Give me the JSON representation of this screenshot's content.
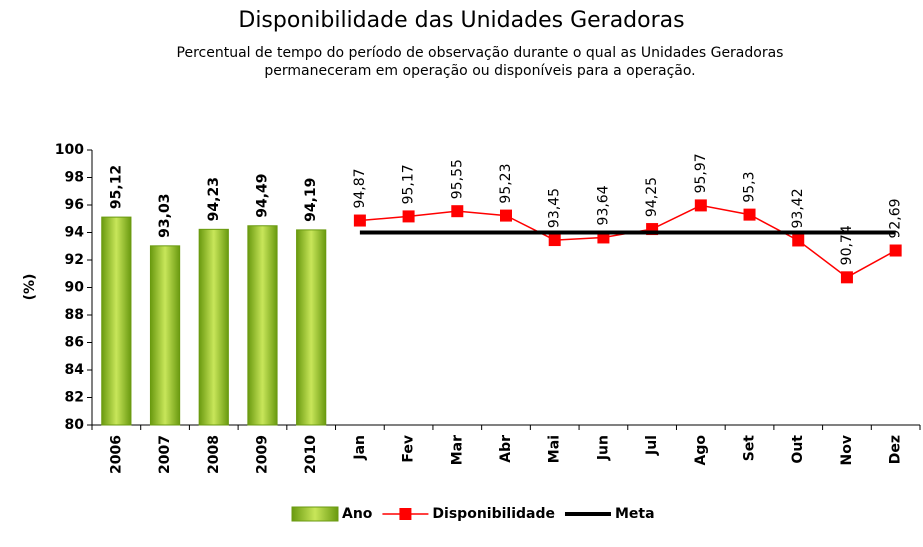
{
  "chart_data": {
    "type": "bar_line",
    "title": "Disponibilidade das Unidades Geradoras",
    "subtitle": "Percentual de tempo do período de observação durante o qual as Unidades Geradoras permaneceram em operação ou disponíveis para a operação.",
    "y_label": "(%)",
    "categories": [
      "2006",
      "2007",
      "2008",
      "2009",
      "2010",
      "Jan",
      "Fev",
      "Mar",
      "Abr",
      "Mai",
      "Jun",
      "Jul",
      "Ago",
      "Set",
      "Out",
      "Nov",
      "Dez"
    ],
    "series": [
      {
        "name": "Ano",
        "kind": "bar",
        "color": "#6a9a10",
        "values": [
          95.12,
          93.03,
          94.23,
          94.49,
          94.19,
          null,
          null,
          null,
          null,
          null,
          null,
          null,
          null,
          null,
          null,
          null,
          null
        ],
        "value_labels": [
          "95,12",
          "93,03",
          "94,23",
          "94,49",
          "94,19",
          null,
          null,
          null,
          null,
          null,
          null,
          null,
          null,
          null,
          null,
          null,
          null
        ]
      },
      {
        "name": "Disponibilidade",
        "kind": "line",
        "color": "#ff0000",
        "values": [
          null,
          null,
          null,
          null,
          null,
          94.87,
          95.17,
          95.55,
          95.23,
          93.45,
          93.64,
          94.25,
          95.97,
          95.3,
          93.42,
          90.74,
          92.69
        ],
        "value_labels": [
          null,
          null,
          null,
          null,
          null,
          "94,87",
          "95,17",
          "95,55",
          "95,23",
          "93,45",
          "93,64",
          "94,25",
          "95,97",
          "95,3",
          "93,42",
          "90,74",
          "92,69"
        ]
      },
      {
        "name": "Meta",
        "kind": "line",
        "color": "#000000",
        "values": [
          null,
          null,
          null,
          null,
          null,
          94,
          94,
          94,
          94,
          94,
          94,
          94,
          94,
          94,
          94,
          94,
          94
        ]
      }
    ],
    "ylim": [
      80,
      100
    ],
    "yticks": [
      80,
      82,
      84,
      86,
      88,
      90,
      92,
      94,
      96,
      98,
      100
    ],
    "grid": false,
    "legend": "bottom"
  }
}
